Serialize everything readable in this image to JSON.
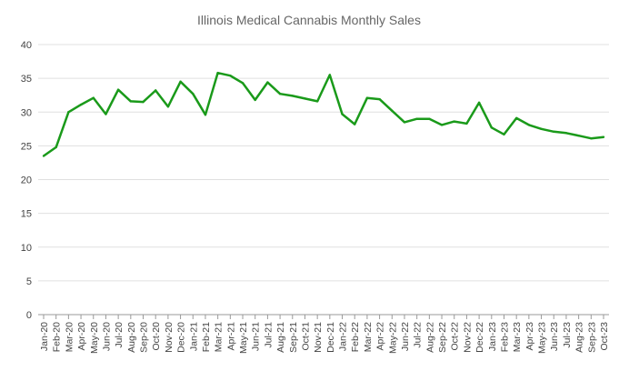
{
  "chart_data": {
    "type": "line",
    "title": "Illinois Medical Cannabis Monthly Sales",
    "xlabel": "",
    "ylabel": "",
    "ylim": [
      0,
      40
    ],
    "yticks": [
      0,
      5,
      10,
      15,
      20,
      25,
      30,
      35,
      40
    ],
    "grid": true,
    "line_color": "#1a9a1a",
    "categories": [
      "Jan-20",
      "Feb-20",
      "Mar-20",
      "Apr-20",
      "May-20",
      "Jun-20",
      "Jul-20",
      "Aug-20",
      "Sep-20",
      "Oct-20",
      "Nov-20",
      "Dec-20",
      "Jan-21",
      "Feb-21",
      "Mar-21",
      "Apr-21",
      "May-21",
      "Jun-21",
      "Jul-21",
      "Aug-21",
      "Sep-21",
      "Oct-21",
      "Nov-21",
      "Dec-21",
      "Jan-22",
      "Feb-22",
      "Mar-22",
      "Apr-22",
      "May-22",
      "Jun-22",
      "Jul-22",
      "Aug-22",
      "Sep-22",
      "Oct-22",
      "Nov-22",
      "Dec-22",
      "Jan-23",
      "Feb-23",
      "Mar-23",
      "Apr-23",
      "May-23",
      "Jun-23",
      "Jul-23",
      "Aug-23",
      "Sep-23",
      "Oct-23"
    ],
    "series": [
      {
        "name": "Monthly Sales",
        "values": [
          23.5,
          24.8,
          30.0,
          31.1,
          32.1,
          29.7,
          33.3,
          31.6,
          31.5,
          33.2,
          30.8,
          34.5,
          32.7,
          29.6,
          35.8,
          35.4,
          34.3,
          31.8,
          34.4,
          32.7,
          32.4,
          32.0,
          31.6,
          35.5,
          29.7,
          28.2,
          32.1,
          31.9,
          30.2,
          28.5,
          29.0,
          29.0,
          28.1,
          28.6,
          28.3,
          31.4,
          27.7,
          26.7,
          29.1,
          28.1,
          27.5,
          27.1,
          26.9,
          26.5,
          26.1,
          26.3
        ]
      }
    ]
  }
}
